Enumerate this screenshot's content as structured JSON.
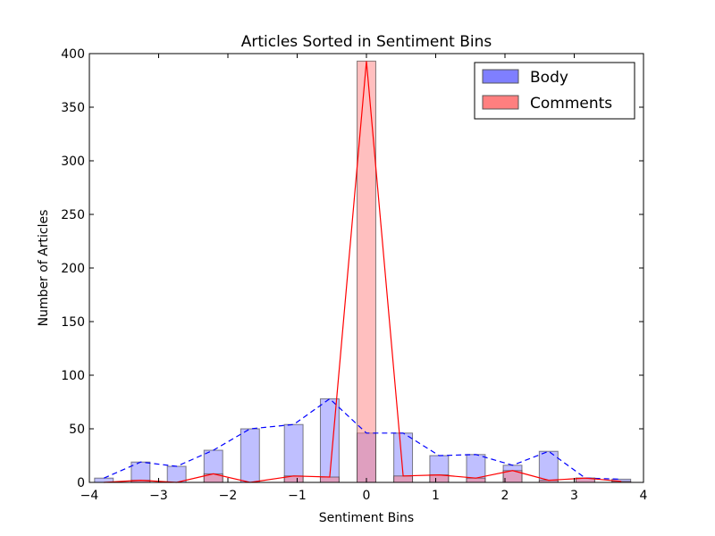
{
  "chart_data": {
    "type": "bar",
    "title": "Articles Sorted in Sentiment Bins",
    "xlabel": "Sentiment Bins",
    "ylabel": "Number of Articles",
    "xlim": [
      -4,
      4
    ],
    "ylim": [
      0,
      400
    ],
    "xticks": [
      -4,
      -3,
      -2,
      -1,
      0,
      1,
      2,
      3,
      4
    ],
    "xtick_labels": [
      "−4",
      "−3",
      "−2",
      "−1",
      "0",
      "1",
      "2",
      "3",
      "4"
    ],
    "yticks": [
      0,
      50,
      100,
      150,
      200,
      250,
      300,
      350,
      400
    ],
    "legend_position": "top-right",
    "bin_centers": [
      -3.79,
      -3.26,
      -2.74,
      -2.21,
      -1.68,
      -1.05,
      -0.53,
      0.0,
      0.53,
      1.05,
      1.58,
      2.11,
      2.63,
      3.16,
      3.68
    ],
    "series": [
      {
        "name": "Body",
        "color": "#7f7fff",
        "line_style": "dashed",
        "line_color": "#0000ff",
        "values": [
          4,
          19,
          15,
          30,
          50,
          54,
          78,
          46,
          46,
          25,
          26,
          16,
          29,
          4,
          3
        ]
      },
      {
        "name": "Comments",
        "color": "#ff7f7f",
        "line_style": "solid",
        "line_color": "#ff0000",
        "values": [
          0,
          2,
          0,
          8,
          0,
          6,
          5,
          393,
          6,
          7,
          4,
          11,
          2,
          4,
          1
        ]
      }
    ]
  }
}
